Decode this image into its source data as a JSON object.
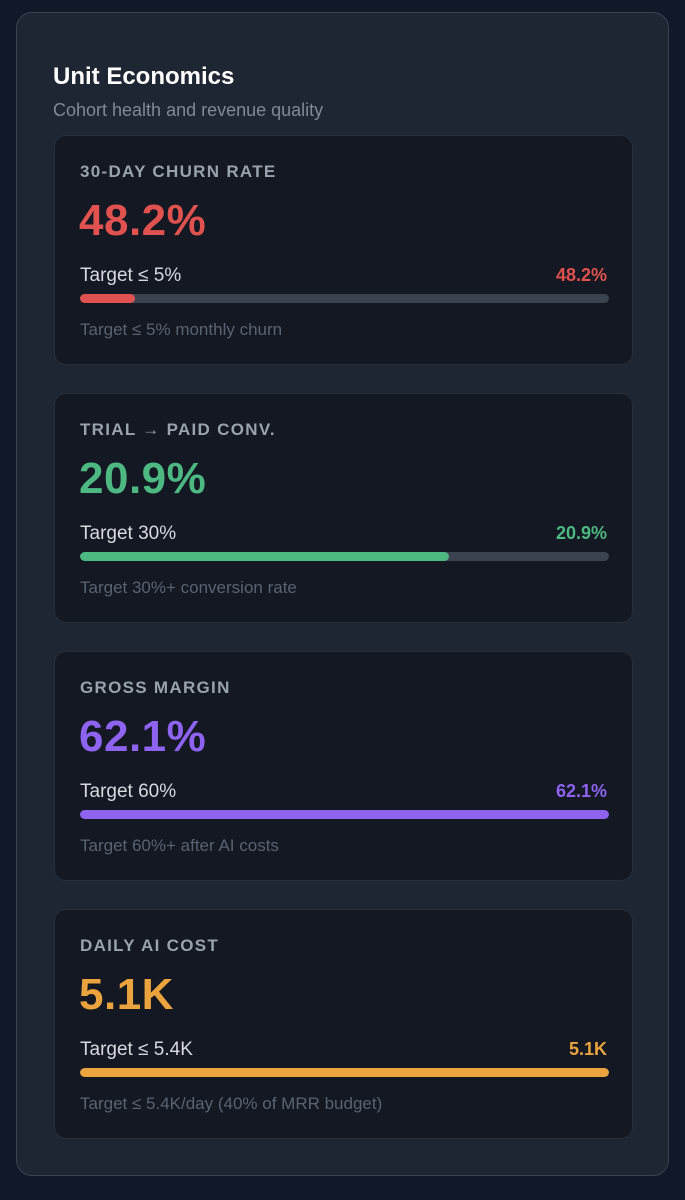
{
  "panel": {
    "title": "Unit Economics",
    "subtitle": "Cohort health and revenue quality"
  },
  "cards": [
    {
      "label": "30-DAY CHURN RATE",
      "value": "48.2%",
      "target_text": "Target ≤ 5%",
      "target_value": "48.2%",
      "note": "Target ≤ 5% monthly churn",
      "progress_fraction": 0.104,
      "color": "#e0524f"
    },
    {
      "label": "TRIAL → PAID CONV.",
      "value": "20.9%",
      "target_text": "Target 30%",
      "target_value": "20.9%",
      "note": "Target 30%+ conversion rate",
      "progress_fraction": 0.697,
      "color": "#4db882"
    },
    {
      "label": "GROSS MARGIN",
      "value": "62.1%",
      "target_text": "Target 60%",
      "target_value": "62.1%",
      "note": "Target 60%+ after AI costs",
      "progress_fraction": 1.0,
      "color": "#8d63f0"
    },
    {
      "label": "DAILY AI COST",
      "value": "5.1K",
      "target_text": "Target ≤ 5.4K",
      "target_value": "5.1K",
      "note": "Target ≤ 5.4K/day (40% of MRR budget)",
      "progress_fraction": 1.0,
      "color": "#eba33e"
    }
  ]
}
